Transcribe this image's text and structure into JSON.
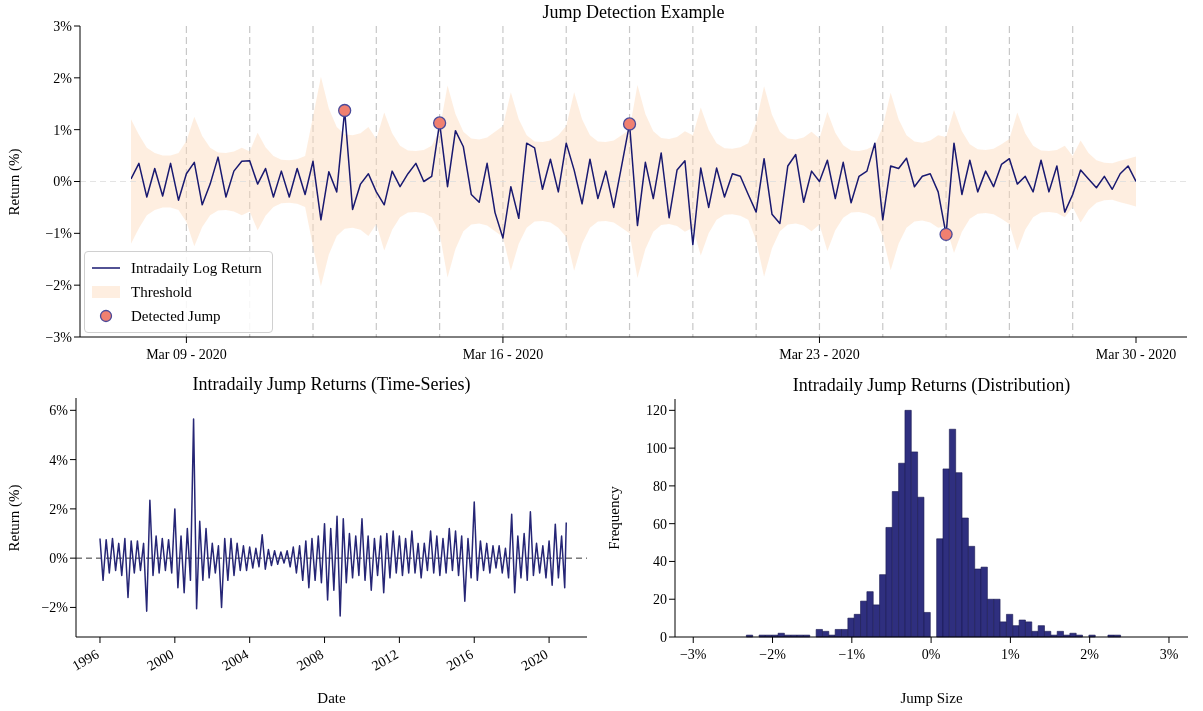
{
  "chart_data": [
    {
      "type": "line",
      "title": "Jump Detection Example",
      "ylabel": "Return (%)",
      "ylim": [
        -3,
        3
      ],
      "yticks": [
        {
          "value": -3,
          "label": "−3%"
        },
        {
          "value": -2,
          "label": "−2%"
        },
        {
          "value": -1,
          "label": "−1%"
        },
        {
          "value": 0,
          "label": "0%"
        },
        {
          "value": 1,
          "label": "1%"
        },
        {
          "value": 2,
          "label": "2%"
        },
        {
          "value": 3,
          "label": "3%"
        }
      ],
      "legend": "bottom left",
      "annotations": [
        "Threshold"
      ],
      "categories": [
        null,
        null,
        null,
        null,
        null,
        null,
        null,
        "Mar 09 - 2020",
        null,
        null,
        null,
        null,
        null,
        null,
        null,
        null,
        null,
        null,
        null,
        null,
        null,
        null,
        null,
        null,
        null,
        null,
        null,
        null,
        null,
        null,
        null,
        null,
        null,
        null,
        null,
        null,
        null,
        null,
        null,
        null,
        null,
        null,
        null,
        null,
        null,
        null,
        null,
        "Mar 16 - 2020",
        null,
        null,
        null,
        null,
        null,
        null,
        null,
        null,
        null,
        null,
        null,
        null,
        null,
        null,
        null,
        null,
        null,
        null,
        null,
        null,
        null,
        null,
        null,
        null,
        null,
        null,
        null,
        null,
        null,
        null,
        null,
        null,
        null,
        null,
        null,
        null,
        null,
        null,
        null,
        "Mar 23 - 2020",
        null,
        null,
        null,
        null,
        null,
        null,
        null,
        null,
        null,
        null,
        null,
        null,
        null,
        null,
        null,
        null,
        null,
        null,
        null,
        null,
        null,
        null,
        null,
        null,
        null,
        null,
        null,
        null,
        null,
        null,
        null,
        null,
        null,
        null,
        null,
        null,
        null,
        null,
        null,
        "Mar 30 - 2020"
      ],
      "series": [
        {
          "name": "Intradaily Log Return",
          "color": "#191970",
          "values": [
            0.05,
            0.35,
            -0.3,
            0.25,
            -0.28,
            0.35,
            -0.36,
            0.15,
            0.37,
            -0.45,
            -0.05,
            0.47,
            -0.3,
            0.2,
            0.39,
            0.4,
            -0.05,
            0.25,
            -0.3,
            0.2,
            -0.3,
            0.25,
            -0.25,
            0.39,
            -0.74,
            0.19,
            -0.2,
            1.37,
            -0.54,
            -0.05,
            0.15,
            -0.2,
            -0.45,
            0.2,
            -0.1,
            0.15,
            0.35,
            0.0,
            0.1,
            1.13,
            -0.1,
            0.98,
            0.67,
            -0.25,
            -0.4,
            0.35,
            -0.6,
            -1.09,
            -0.1,
            -0.71,
            0.74,
            0.65,
            -0.15,
            0.43,
            -0.2,
            0.74,
            0.22,
            -0.43,
            0.43,
            -0.33,
            0.2,
            -0.5,
            0.3,
            1.11,
            -0.85,
            0.37,
            -0.33,
            0.55,
            -0.7,
            0.22,
            0.4,
            -1.22,
            0.26,
            -0.5,
            0.26,
            -0.3,
            0.15,
            0.1,
            -0.25,
            -0.59,
            0.44,
            -0.63,
            -0.81,
            0.3,
            0.52,
            -0.4,
            0.2,
            0.0,
            0.41,
            -0.33,
            0.37,
            -0.41,
            0.1,
            0.2,
            0.74,
            -0.74,
            0.3,
            0.25,
            0.45,
            -0.1,
            0.1,
            0.15,
            -0.2,
            -1.02,
            0.74,
            -0.25,
            0.41,
            -0.2,
            0.2,
            -0.1,
            0.33,
            0.44,
            -0.05,
            0.1,
            -0.2,
            0.41,
            -0.2,
            0.3,
            -0.59,
            -0.25,
            0.22,
            0.05,
            -0.12,
            0.1,
            -0.15,
            0.15,
            0.3,
            0.0
          ],
          "upper": [
            1.2,
            0.9,
            0.65,
            0.55,
            0.5,
            0.5,
            0.55,
            0.78,
            1.25,
            0.88,
            0.65,
            0.56,
            0.55,
            0.58,
            0.65,
            0.58,
            0.94,
            0.66,
            0.49,
            0.42,
            0.41,
            0.43,
            0.49,
            1.25,
            2.02,
            1.41,
            1.05,
            0.91,
            0.89,
            0.93,
            1.05,
            0.82,
            1.33,
            0.93,
            0.69,
            0.6,
            0.59,
            0.61,
            0.69,
            1.0,
            1.85,
            1.3,
            0.96,
            0.83,
            0.81,
            0.85,
            0.96,
            1.07,
            1.72,
            1.2,
            0.89,
            0.77,
            0.76,
            0.79,
            0.89,
            1.07,
            1.72,
            1.2,
            0.89,
            0.77,
            0.76,
            0.79,
            0.89,
            1.0,
            1.86,
            1.3,
            0.97,
            0.84,
            0.82,
            0.86,
            0.97,
            0.89,
            1.43,
            1.0,
            0.74,
            0.64,
            0.63,
            0.66,
            0.74,
            1.14,
            1.84,
            1.29,
            0.96,
            0.83,
            0.81,
            0.85,
            0.96,
            0.83,
            1.34,
            0.94,
            0.7,
            0.6,
            0.59,
            0.62,
            0.7,
            1.06,
            1.71,
            1.2,
            0.89,
            0.77,
            0.75,
            0.79,
            0.89,
            0.86,
            1.38,
            0.97,
            0.72,
            0.62,
            0.61,
            0.63,
            0.72,
            0.82,
            1.33,
            0.93,
            0.69,
            0.6,
            0.59,
            0.61,
            0.69,
            0.49,
            0.79,
            0.55,
            0.41,
            0.36,
            0.35,
            0.4,
            0.44,
            0.48
          ],
          "lower": [
            -1.2,
            -0.9,
            -0.65,
            -0.55,
            -0.5,
            -0.5,
            -0.55,
            -0.78,
            -1.25,
            -0.88,
            -0.65,
            -0.56,
            -0.55,
            -0.58,
            -0.65,
            -0.58,
            -0.94,
            -0.66,
            -0.49,
            -0.42,
            -0.41,
            -0.43,
            -0.49,
            -1.25,
            -2.02,
            -1.41,
            -1.05,
            -0.91,
            -0.89,
            -0.93,
            -1.05,
            -0.82,
            -1.33,
            -0.93,
            -0.69,
            -0.6,
            -0.59,
            -0.61,
            -0.69,
            -1.0,
            -1.85,
            -1.3,
            -0.96,
            -0.83,
            -0.81,
            -0.85,
            -0.96,
            -1.07,
            -1.72,
            -1.2,
            -0.89,
            -0.77,
            -0.76,
            -0.79,
            -0.89,
            -1.07,
            -1.72,
            -1.2,
            -0.89,
            -0.77,
            -0.76,
            -0.79,
            -0.89,
            -1.0,
            -1.86,
            -1.3,
            -0.97,
            -0.84,
            -0.82,
            -0.86,
            -0.97,
            -0.89,
            -1.43,
            -1.0,
            -0.74,
            -0.64,
            -0.63,
            -0.66,
            -0.74,
            -1.14,
            -1.84,
            -1.29,
            -0.96,
            -0.83,
            -0.81,
            -0.85,
            -0.96,
            -0.83,
            -1.34,
            -0.94,
            -0.7,
            -0.6,
            -0.59,
            -0.62,
            -0.7,
            -1.06,
            -1.71,
            -1.2,
            -0.89,
            -0.77,
            -0.75,
            -0.79,
            -0.89,
            -0.86,
            -1.38,
            -0.97,
            -0.72,
            -0.62,
            -0.61,
            -0.63,
            -0.72,
            -0.82,
            -1.33,
            -0.93,
            -0.69,
            -0.6,
            -0.59,
            -0.61,
            -0.69,
            -0.49,
            -0.79,
            -0.55,
            -0.41,
            -0.36,
            -0.35,
            -0.4,
            -0.44,
            -0.48
          ]
        },
        {
          "name": "Detected Jump",
          "type": "scatter",
          "color": "#f08070",
          "marker": "circle",
          "values": [
            null,
            null,
            null,
            null,
            null,
            null,
            null,
            null,
            null,
            null,
            null,
            null,
            null,
            null,
            null,
            null,
            null,
            null,
            null,
            null,
            null,
            null,
            null,
            null,
            null,
            null,
            null,
            1.37,
            null,
            null,
            null,
            null,
            null,
            null,
            null,
            null,
            null,
            null,
            null,
            1.13,
            null,
            null,
            null,
            null,
            null,
            null,
            null,
            null,
            null,
            null,
            null,
            null,
            null,
            null,
            null,
            null,
            null,
            null,
            null,
            null,
            null,
            null,
            null,
            1.11,
            null,
            null,
            null,
            null,
            null,
            null,
            null,
            null,
            null,
            null,
            null,
            null,
            null,
            null,
            null,
            null,
            null,
            null,
            null,
            null,
            null,
            null,
            null,
            null,
            null,
            null,
            null,
            null,
            null,
            null,
            null,
            null,
            null,
            null,
            null,
            null,
            null,
            null,
            null,
            -1.02,
            null,
            null,
            null,
            null,
            null,
            null,
            null,
            null,
            null,
            null,
            null,
            null,
            null,
            null,
            null,
            null,
            null,
            null,
            null,
            null,
            null,
            null,
            null,
            null
          ]
        }
      ],
      "ref_lines": [
        {
          "axis": "y",
          "value": 0,
          "color": "#dddddd",
          "line_style": "dashed"
        }
      ]
    },
    {
      "type": "line",
      "title": "Intradaily Jump Returns (Time-Series)",
      "xlabel": "Date",
      "ylabel": "Return (%)",
      "color": "#262676",
      "xlim": [
        "1994-09-20",
        "2022-01-10"
      ],
      "ylim": [
        -3.2,
        6.5
      ],
      "xticks": [
        {
          "value": "1996-01-01",
          "label": "1996"
        },
        {
          "value": "2000-01-01",
          "label": "2000"
        },
        {
          "value": "2004-01-01",
          "label": "2004"
        },
        {
          "value": "2008-01-01",
          "label": "2008"
        },
        {
          "value": "2012-01-01",
          "label": "2012"
        },
        {
          "value": "2016-01-01",
          "label": "2016"
        },
        {
          "value": "2020-01-01",
          "label": "2020"
        }
      ],
      "yticks": [
        {
          "value": -2,
          "label": "−2%"
        },
        {
          "value": 0,
          "label": "0%"
        },
        {
          "value": 2,
          "label": "2%"
        },
        {
          "value": 4,
          "label": "4%"
        },
        {
          "value": 6,
          "label": "6%"
        }
      ],
      "x": [
        "1996-01",
        "1996-03",
        "1996-05",
        "1996-07",
        "1996-09",
        "1996-11",
        "1997-01",
        "1997-03",
        "1997-05",
        "1997-07",
        "1997-09",
        "1997-11",
        "1998-01",
        "1998-03",
        "1998-05",
        "1998-07",
        "1998-09",
        "1998-11",
        "1999-01",
        "1999-03",
        "1999-05",
        "1999-07",
        "1999-09",
        "1999-11",
        "2000-01",
        "2000-03",
        "2000-05",
        "2000-07",
        "2000-09",
        "2000-11",
        "2001-01",
        "2001-03",
        "2001-05",
        "2001-07",
        "2001-09",
        "2001-11",
        "2002-01",
        "2002-03",
        "2002-05",
        "2002-07",
        "2002-09",
        "2002-11",
        "2003-01",
        "2003-03",
        "2003-05",
        "2003-07",
        "2003-09",
        "2003-11",
        "2004-01",
        "2004-03",
        "2004-05",
        "2004-07",
        "2004-09",
        "2004-11",
        "2005-01",
        "2005-03",
        "2005-05",
        "2005-07",
        "2005-09",
        "2005-11",
        "2006-01",
        "2006-03",
        "2006-05",
        "2006-07",
        "2006-09",
        "2006-11",
        "2007-01",
        "2007-03",
        "2007-05",
        "2007-07",
        "2007-09",
        "2007-11",
        "2008-01",
        "2008-03",
        "2008-05",
        "2008-07",
        "2008-09",
        "2008-11",
        "2009-01",
        "2009-03",
        "2009-05",
        "2009-07",
        "2009-09",
        "2009-11",
        "2010-01",
        "2010-03",
        "2010-05",
        "2010-07",
        "2010-09",
        "2010-11",
        "2011-01",
        "2011-03",
        "2011-05",
        "2011-07",
        "2011-09",
        "2011-11",
        "2012-01",
        "2012-03",
        "2012-05",
        "2012-07",
        "2012-09",
        "2012-11",
        "2013-01",
        "2013-03",
        "2013-05",
        "2013-07",
        "2013-09",
        "2013-11",
        "2014-01",
        "2014-03",
        "2014-05",
        "2014-07",
        "2014-09",
        "2014-11",
        "2015-01",
        "2015-03",
        "2015-05",
        "2015-07",
        "2015-09",
        "2015-11",
        "2016-01",
        "2016-03",
        "2016-05",
        "2016-07",
        "2016-09",
        "2016-11",
        "2017-01",
        "2017-03",
        "2017-05",
        "2017-07",
        "2017-09",
        "2017-11",
        "2018-01",
        "2018-03",
        "2018-05",
        "2018-07",
        "2018-09",
        "2018-11",
        "2019-01",
        "2019-03",
        "2019-05",
        "2019-07",
        "2019-09",
        "2019-11",
        "2020-01",
        "2020-03",
        "2020-05",
        "2020-07",
        "2020-09",
        "2020-11",
        "2020-12"
      ],
      "values": [
        0.8,
        -0.9,
        0.75,
        -0.6,
        0.8,
        -0.5,
        0.6,
        -0.7,
        0.8,
        -1.6,
        0.7,
        -0.6,
        0.7,
        -0.5,
        0.6,
        -2.15,
        2.35,
        -0.7,
        0.9,
        -0.6,
        0.8,
        -0.5,
        0.75,
        -0.6,
        2.0,
        -1.2,
        0.9,
        -1.4,
        1.2,
        -0.9,
        5.65,
        -2.05,
        1.5,
        -0.9,
        1.2,
        -0.8,
        0.6,
        -0.6,
        0.5,
        -2.0,
        0.8,
        -0.9,
        0.8,
        -0.7,
        0.6,
        -0.5,
        0.5,
        -0.5,
        0.45,
        -0.4,
        0.4,
        -0.35,
        0.95,
        -0.45,
        0.35,
        -0.3,
        0.3,
        -0.25,
        0.25,
        -0.2,
        0.3,
        -0.35,
        0.45,
        -0.6,
        0.5,
        -0.9,
        0.7,
        -1.2,
        0.8,
        -0.9,
        0.9,
        -1.0,
        1.4,
        -1.7,
        1.2,
        -1.3,
        1.7,
        -2.35,
        1.6,
        -1.0,
        1.0,
        -0.8,
        0.9,
        -0.7,
        1.6,
        -0.9,
        0.9,
        -1.3,
        0.8,
        -0.7,
        0.9,
        -1.4,
        1.0,
        -0.8,
        1.1,
        -0.6,
        0.9,
        -0.7,
        0.8,
        -0.6,
        1.1,
        -0.6,
        0.6,
        -0.8,
        0.6,
        -0.5,
        1.1,
        -0.6,
        0.9,
        -0.7,
        0.8,
        -0.6,
        1.2,
        -0.5,
        1.1,
        -0.7,
        0.9,
        -1.75,
        0.8,
        -0.8,
        2.28,
        -0.9,
        0.7,
        -0.5,
        0.6,
        -0.6,
        0.5,
        -0.4,
        0.5,
        -0.6,
        0.4,
        -0.8,
        1.78,
        -1.4,
        0.9,
        -0.8,
        1.0,
        -0.9,
        1.88,
        -0.7,
        0.6,
        -0.6,
        0.5,
        -0.8,
        0.7,
        -1.1,
        1.38,
        -0.8,
        0.9,
        -1.2,
        1.45
      ],
      "ref_lines": [
        {
          "axis": "y",
          "value": 0,
          "color": "#000000",
          "line_style": "dashed"
        }
      ]
    },
    {
      "type": "histogram",
      "title": "Intradaily Jump Returns (Distribution)",
      "xlabel": "Jump Size",
      "ylabel": "Frequency",
      "color": "#2f2f7f",
      "xlim": [
        -3.23,
        3.24
      ],
      "ylim": [
        0,
        126
      ],
      "xticks": [
        {
          "value": -3,
          "label": "−3%"
        },
        {
          "value": -2,
          "label": "−2%"
        },
        {
          "value": -1,
          "label": "−1%"
        },
        {
          "value": 0,
          "label": "0%"
        },
        {
          "value": 1,
          "label": "1%"
        },
        {
          "value": 2,
          "label": "2%"
        },
        {
          "value": 3,
          "label": "3%"
        }
      ],
      "yticks": [
        0,
        20,
        40,
        60,
        80,
        100,
        120
      ],
      "bins": [
        -3.05,
        -2.97,
        -2.89,
        -2.81,
        -2.73,
        -2.65,
        -2.57,
        -2.49,
        -2.41,
        -2.33,
        -2.25,
        -2.17,
        -2.09,
        -2.01,
        -1.93,
        -1.85,
        -1.77,
        -1.69,
        -1.61,
        -1.53,
        -1.45,
        -1.37,
        -1.29,
        -1.21,
        -1.13,
        -1.05,
        -0.97,
        -0.89,
        -0.81,
        -0.73,
        -0.65,
        -0.57,
        -0.49,
        -0.41,
        -0.33,
        -0.25,
        -0.17,
        -0.09,
        -0.01,
        0.07,
        0.15,
        0.23,
        0.31,
        0.39,
        0.47,
        0.55,
        0.63,
        0.71,
        0.79,
        0.87,
        0.95,
        1.03,
        1.11,
        1.19,
        1.27,
        1.35,
        1.43,
        1.51,
        1.59,
        1.67,
        1.75,
        1.83,
        1.91,
        1.99,
        2.07,
        2.15,
        2.23,
        2.31,
        2.39,
        2.47,
        2.55,
        2.63,
        2.71,
        2.79,
        2.87,
        2.95,
        3.03
      ],
      "values": [
        0,
        0,
        0,
        0,
        0,
        0,
        0,
        0,
        0,
        1,
        0,
        1,
        1,
        1,
        2,
        1,
        1,
        1,
        1,
        0,
        4,
        3,
        1,
        4,
        4,
        10,
        12,
        19,
        24,
        17,
        33,
        58,
        77,
        92,
        120,
        98,
        74,
        13,
        0,
        52,
        89,
        110,
        87,
        63,
        48,
        36,
        37,
        20,
        20,
        8,
        12,
        6,
        9,
        8,
        3,
        6,
        3,
        1,
        3,
        1,
        2,
        1,
        0,
        1,
        0,
        0,
        1,
        1,
        0,
        0,
        0,
        0,
        0,
        0,
        0,
        0
      ]
    }
  ]
}
